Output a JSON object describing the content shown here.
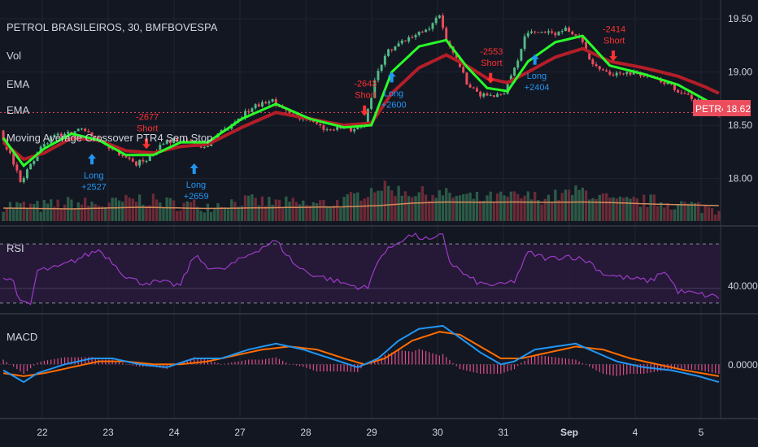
{
  "symbol_title": "PETROL BRASILEIROS, 30, BMFBOVESPA",
  "indicator_labels": [
    "Vol",
    "EMA",
    "EMA",
    "Moving Average Crossover PTR4 Sem Stop"
  ],
  "price_tag": {
    "ticker": "PETR4",
    "value": "18.62"
  },
  "panels": {
    "rsi": {
      "title": "RSI",
      "level_label": "40.0000"
    },
    "macd": {
      "title": "MACD",
      "zero_label": "0.0000"
    }
  },
  "colors": {
    "background": "#131722",
    "grid": "#1f2433",
    "up": "#53b987",
    "down": "#eb4d5c",
    "ema_fast": "#29ff29",
    "ema_slow": "#b41e28",
    "volume_ma": "#d28c5a",
    "rsi_line": "#9c3bc7",
    "rsi_band": "#2a1a3d",
    "macd_line": "#2196f3",
    "signal_line": "#ff6d00",
    "histogram": "#e04e8a",
    "long_signal": "#2196f3",
    "short_signal": "#ff3030"
  },
  "chart_data": [
    {
      "type": "candlestick",
      "title": "PETROL BRASILEIROS, 30, BMFBOVESPA",
      "x_ticks": [
        "22",
        "23",
        "24",
        "27",
        "28",
        "29",
        "30",
        "31",
        "Sep",
        "4",
        "5"
      ],
      "y_ticks": [
        19.5,
        19.0,
        18.5,
        18.0
      ],
      "ylim": [
        17.6,
        19.6
      ],
      "last_price": 18.62,
      "price_path": [
        [
          0,
          18.45
        ],
        [
          3,
          18.22
        ],
        [
          6,
          17.98
        ],
        [
          9,
          18.12
        ],
        [
          12,
          18.28
        ],
        [
          16,
          18.4
        ],
        [
          20,
          18.42
        ],
        [
          24,
          18.48
        ],
        [
          28,
          18.38
        ],
        [
          32,
          18.3
        ],
        [
          36,
          18.22
        ],
        [
          40,
          18.14
        ],
        [
          44,
          18.2
        ],
        [
          48,
          18.35
        ],
        [
          52,
          18.36
        ],
        [
          56,
          18.34
        ],
        [
          60,
          18.3
        ],
        [
          64,
          18.4
        ],
        [
          68,
          18.52
        ],
        [
          72,
          18.62
        ],
        [
          76,
          18.7
        ],
        [
          80,
          18.72
        ],
        [
          84,
          18.64
        ],
        [
          88,
          18.58
        ],
        [
          92,
          18.52
        ],
        [
          96,
          18.46
        ],
        [
          100,
          18.48
        ],
        [
          104,
          18.44
        ],
        [
          107,
          18.5
        ],
        [
          110,
          18.92
        ],
        [
          114,
          19.2
        ],
        [
          118,
          19.3
        ],
        [
          122,
          19.34
        ],
        [
          126,
          19.42
        ],
        [
          129,
          19.52
        ],
        [
          131,
          19.3
        ],
        [
          134,
          19.15
        ],
        [
          137,
          18.9
        ],
        [
          140,
          18.8
        ],
        [
          144,
          18.78
        ],
        [
          148,
          18.82
        ],
        [
          151,
          19.02
        ],
        [
          154,
          19.35
        ],
        [
          158,
          19.38
        ],
        [
          162,
          19.36
        ],
        [
          166,
          19.4
        ],
        [
          170,
          19.35
        ],
        [
          174,
          19.05
        ],
        [
          178,
          19.0
        ],
        [
          182,
          18.98
        ],
        [
          186,
          19.0
        ],
        [
          190,
          18.95
        ],
        [
          194,
          18.92
        ],
        [
          198,
          18.85
        ],
        [
          202,
          18.78
        ],
        [
          206,
          18.7
        ],
        [
          210,
          18.62
        ]
      ],
      "ema_fast_path": [
        [
          0,
          18.38
        ],
        [
          6,
          18.12
        ],
        [
          12,
          18.28
        ],
        [
          20,
          18.42
        ],
        [
          28,
          18.36
        ],
        [
          36,
          18.22
        ],
        [
          44,
          18.22
        ],
        [
          52,
          18.34
        ],
        [
          60,
          18.34
        ],
        [
          70,
          18.56
        ],
        [
          80,
          18.7
        ],
        [
          90,
          18.56
        ],
        [
          100,
          18.48
        ],
        [
          108,
          18.5
        ],
        [
          114,
          19.0
        ],
        [
          122,
          19.24
        ],
        [
          130,
          19.3
        ],
        [
          136,
          19.05
        ],
        [
          142,
          18.85
        ],
        [
          148,
          18.82
        ],
        [
          154,
          19.1
        ],
        [
          162,
          19.28
        ],
        [
          170,
          19.34
        ],
        [
          178,
          19.06
        ],
        [
          188,
          18.98
        ],
        [
          198,
          18.88
        ],
        [
          206,
          18.74
        ],
        [
          210,
          18.66
        ]
      ],
      "ema_slow_path": [
        [
          0,
          18.34
        ],
        [
          6,
          18.18
        ],
        [
          12,
          18.24
        ],
        [
          20,
          18.38
        ],
        [
          28,
          18.36
        ],
        [
          36,
          18.26
        ],
        [
          44,
          18.24
        ],
        [
          52,
          18.3
        ],
        [
          60,
          18.32
        ],
        [
          70,
          18.48
        ],
        [
          80,
          18.62
        ],
        [
          90,
          18.56
        ],
        [
          100,
          18.5
        ],
        [
          108,
          18.52
        ],
        [
          114,
          18.8
        ],
        [
          122,
          19.04
        ],
        [
          130,
          19.16
        ],
        [
          136,
          19.06
        ],
        [
          142,
          18.94
        ],
        [
          148,
          18.9
        ],
        [
          154,
          19.0
        ],
        [
          162,
          19.14
        ],
        [
          170,
          19.22
        ],
        [
          178,
          19.1
        ],
        [
          188,
          19.04
        ],
        [
          198,
          18.96
        ],
        [
          206,
          18.86
        ],
        [
          210,
          18.8
        ]
      ],
      "signals": [
        {
          "type": "Long",
          "text": "Long",
          "value": "+2527",
          "bar": 26
        },
        {
          "type": "Short",
          "text": "Short",
          "value": "-2677",
          "bar": 42
        },
        {
          "type": "Long",
          "text": "Long",
          "value": "+2659",
          "bar": 56
        },
        {
          "type": "Short",
          "text": "Short",
          "value": "-2643",
          "bar": 106
        },
        {
          "type": "Long",
          "text": "Long",
          "value": "+2600",
          "bar": 114
        },
        {
          "type": "Short",
          "text": "Short",
          "value": "-2553",
          "bar": 143
        },
        {
          "type": "Long",
          "text": "Long",
          "value": "+2404",
          "bar": 156
        },
        {
          "type": "Short",
          "text": "Short",
          "value": "-2414",
          "bar": 179
        }
      ]
    },
    {
      "type": "bar",
      "title": "Vol",
      "volume_path": [
        [
          0,
          0.4
        ],
        [
          10,
          0.35
        ],
        [
          20,
          0.45
        ],
        [
          30,
          0.4
        ],
        [
          40,
          0.55
        ],
        [
          50,
          0.42
        ],
        [
          60,
          0.38
        ],
        [
          70,
          0.5
        ],
        [
          80,
          0.45
        ],
        [
          90,
          0.4
        ],
        [
          100,
          0.48
        ],
        [
          110,
          0.85
        ],
        [
          120,
          0.7
        ],
        [
          130,
          0.65
        ],
        [
          140,
          0.55
        ],
        [
          150,
          0.6
        ],
        [
          160,
          0.58
        ],
        [
          170,
          0.75
        ],
        [
          180,
          0.45
        ],
        [
          190,
          0.5
        ],
        [
          200,
          0.4
        ],
        [
          210,
          0.3
        ]
      ],
      "volume_ma_path": [
        [
          0,
          0.32
        ],
        [
          20,
          0.3
        ],
        [
          40,
          0.34
        ],
        [
          60,
          0.31
        ],
        [
          80,
          0.33
        ],
        [
          100,
          0.35
        ],
        [
          110,
          0.38
        ],
        [
          120,
          0.44
        ],
        [
          130,
          0.47
        ],
        [
          140,
          0.46
        ],
        [
          150,
          0.47
        ],
        [
          160,
          0.46
        ],
        [
          170,
          0.47
        ],
        [
          180,
          0.45
        ],
        [
          190,
          0.42
        ],
        [
          200,
          0.4
        ],
        [
          210,
          0.38
        ]
      ]
    },
    {
      "type": "line",
      "title": "RSI",
      "ylim": [
        25,
        80
      ],
      "levels": [
        70,
        40,
        30
      ],
      "series": [
        {
          "name": "RSI",
          "path": [
            [
              0,
              47
            ],
            [
              3,
              45
            ],
            [
              5,
              30
            ],
            [
              8,
              29
            ],
            [
              10,
              52
            ],
            [
              16,
              54
            ],
            [
              22,
              60
            ],
            [
              28,
              66
            ],
            [
              32,
              58
            ],
            [
              36,
              48
            ],
            [
              40,
              44
            ],
            [
              46,
              44
            ],
            [
              52,
              42
            ],
            [
              56,
              62
            ],
            [
              60,
              55
            ],
            [
              64,
              52
            ],
            [
              70,
              60
            ],
            [
              76,
              68
            ],
            [
              80,
              72
            ],
            [
              86,
              55
            ],
            [
              90,
              50
            ],
            [
              96,
              46
            ],
            [
              102,
              42
            ],
            [
              107,
              40
            ],
            [
              110,
              60
            ],
            [
              116,
              72
            ],
            [
              120,
              76
            ],
            [
              126,
              72
            ],
            [
              129,
              77
            ],
            [
              131,
              58
            ],
            [
              136,
              48
            ],
            [
              140,
              43
            ],
            [
              146,
              42
            ],
            [
              150,
              45
            ],
            [
              154,
              64
            ],
            [
              160,
              60
            ],
            [
              166,
              62
            ],
            [
              172,
              58
            ],
            [
              176,
              50
            ],
            [
              180,
              48
            ],
            [
              186,
              46
            ],
            [
              190,
              45
            ],
            [
              194,
              52
            ],
            [
              198,
              38
            ],
            [
              204,
              36
            ],
            [
              210,
              34
            ]
          ]
        }
      ]
    },
    {
      "type": "line",
      "title": "MACD",
      "ylim": [
        -0.12,
        0.16
      ],
      "zero_label": "0.0000",
      "series": [
        {
          "name": "MACD",
          "path": [
            [
              0,
              -0.02
            ],
            [
              6,
              -0.06
            ],
            [
              10,
              -0.03
            ],
            [
              18,
              0.0
            ],
            [
              26,
              0.02
            ],
            [
              32,
              0.02
            ],
            [
              40,
              0.0
            ],
            [
              48,
              -0.01
            ],
            [
              56,
              0.02
            ],
            [
              64,
              0.02
            ],
            [
              72,
              0.05
            ],
            [
              80,
              0.07
            ],
            [
              88,
              0.05
            ],
            [
              96,
              0.02
            ],
            [
              104,
              -0.01
            ],
            [
              110,
              0.02
            ],
            [
              116,
              0.08
            ],
            [
              122,
              0.12
            ],
            [
              129,
              0.13
            ],
            [
              134,
              0.09
            ],
            [
              140,
              0.04
            ],
            [
              146,
              0.0
            ],
            [
              150,
              0.01
            ],
            [
              156,
              0.05
            ],
            [
              162,
              0.06
            ],
            [
              168,
              0.07
            ],
            [
              174,
              0.04
            ],
            [
              180,
              0.01
            ],
            [
              188,
              -0.01
            ],
            [
              196,
              -0.02
            ],
            [
              204,
              -0.04
            ],
            [
              210,
              -0.06
            ]
          ]
        },
        {
          "name": "Signal",
          "path": [
            [
              0,
              -0.03
            ],
            [
              6,
              -0.04
            ],
            [
              12,
              -0.03
            ],
            [
              20,
              -0.01
            ],
            [
              28,
              0.01
            ],
            [
              36,
              0.01
            ],
            [
              44,
              0.0
            ],
            [
              52,
              0.0
            ],
            [
              60,
              0.01
            ],
            [
              68,
              0.03
            ],
            [
              76,
              0.05
            ],
            [
              84,
              0.06
            ],
            [
              92,
              0.05
            ],
            [
              100,
              0.02
            ],
            [
              106,
              0.0
            ],
            [
              112,
              0.02
            ],
            [
              120,
              0.08
            ],
            [
              128,
              0.11
            ],
            [
              134,
              0.1
            ],
            [
              140,
              0.06
            ],
            [
              146,
              0.02
            ],
            [
              152,
              0.02
            ],
            [
              160,
              0.04
            ],
            [
              168,
              0.06
            ],
            [
              176,
              0.05
            ],
            [
              184,
              0.02
            ],
            [
              192,
              0.0
            ],
            [
              200,
              -0.02
            ],
            [
              210,
              -0.04
            ]
          ]
        }
      ]
    }
  ]
}
